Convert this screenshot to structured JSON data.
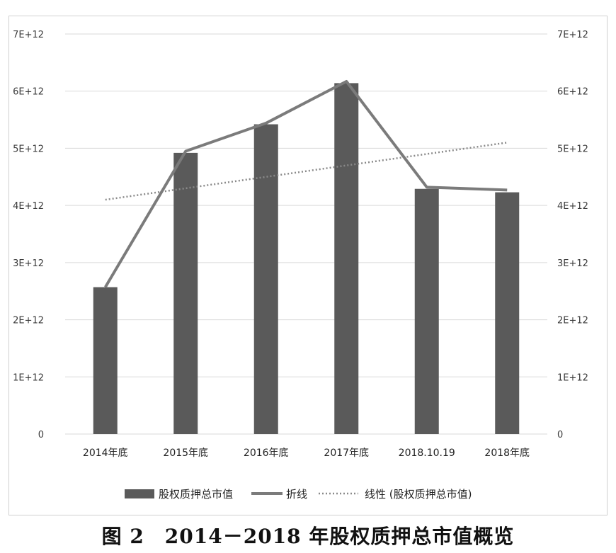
{
  "caption": "图 2　2014－2018 年股权质押总市值概览",
  "chart_data": {
    "type": "bar",
    "categories": [
      "2014年底",
      "2015年底",
      "2016年底",
      "2017年底",
      "2018.10.19",
      "2018年底"
    ],
    "series": [
      {
        "name": "股权质押总市值",
        "type": "bar",
        "values": [
          2570000000000.0,
          4920000000000.0,
          5420000000000.0,
          6140000000000.0,
          4290000000000.0,
          4230000000000.0
        ]
      },
      {
        "name": "折线",
        "type": "line",
        "values": [
          2570000000000.0,
          4950000000000.0,
          5440000000000.0,
          6170000000000.0,
          4320000000000.0,
          4270000000000.0
        ]
      },
      {
        "name": "线性 (股权质押总市值)",
        "type": "trendline",
        "style": "dotted",
        "values": [
          4100000000000.0,
          4300000000000.0,
          4500000000000.0,
          4700000000000.0,
          4900000000000.0,
          5100000000000.0
        ]
      }
    ],
    "ylim": [
      0,
      7000000000000.0
    ],
    "yticks": [
      "0",
      "1E+12",
      "2E+12",
      "3E+12",
      "4E+12",
      "5E+12",
      "6E+12",
      "7E+12"
    ],
    "ytick_values": [
      0,
      1000000000000.0,
      2000000000000.0,
      3000000000000.0,
      4000000000000.0,
      5000000000000.0,
      6000000000000.0,
      7000000000000.0
    ],
    "secondary_yticks": [
      "0",
      "1E+12",
      "2E+12",
      "3E+12",
      "4E+12",
      "5E+12",
      "6E+12",
      "7E+12"
    ],
    "grid": true,
    "legend_position": "bottom",
    "colors": {
      "bar": "#5a5a5a",
      "line": "#7b7b7b",
      "trend": "#8a8a8a",
      "grid": "#d9d9d9"
    }
  }
}
